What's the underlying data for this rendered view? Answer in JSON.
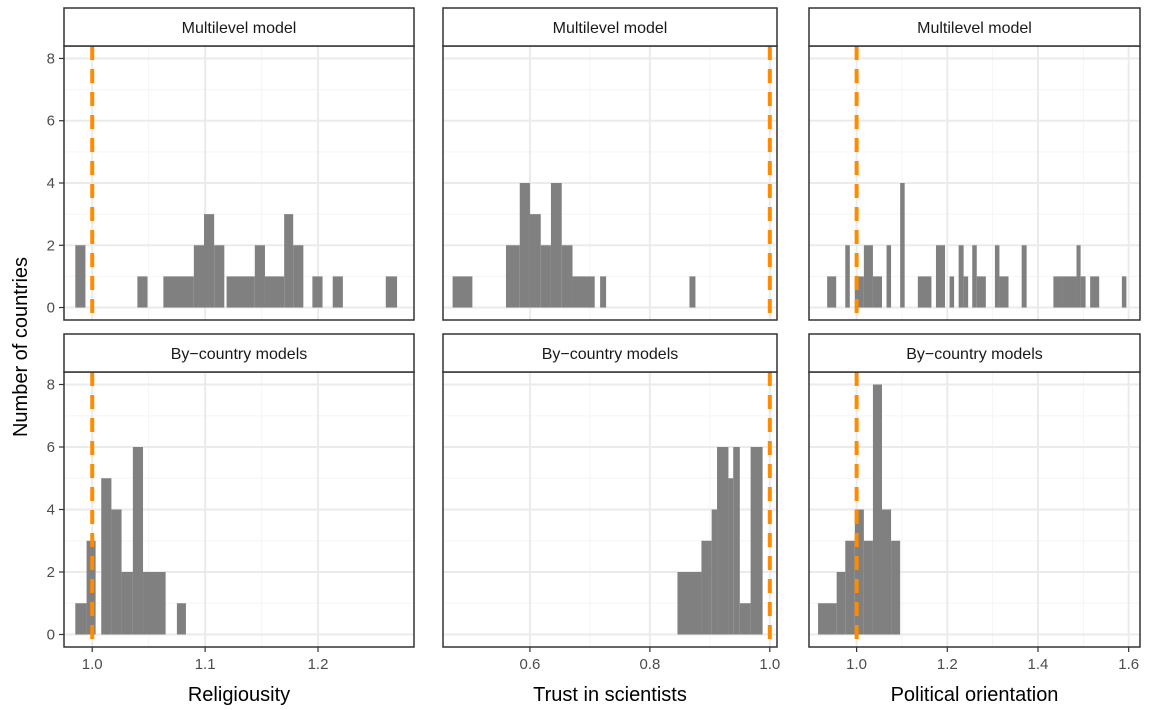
{
  "ylabel": "Number of countries",
  "colors": {
    "bar": "#808080",
    "reference_line": "#FF8C00",
    "grid_major": "#EBEBEB",
    "grid_minor": "#F5F5F5",
    "frame": "#333333",
    "strip_fill": "#FFFFFF"
  },
  "chart_data": [
    {
      "type": "bar",
      "panel": "religiousness-multilevel",
      "title": "Multilevel model",
      "xlabel": "Religiousity",
      "ylabel": "Number of countries",
      "xlim": [
        0.975,
        1.285
      ],
      "ylim": [
        -0.4,
        8.4
      ],
      "xticks": [
        1.0,
        1.1,
        1.2
      ],
      "xtick_labels": [
        "1.0",
        "1.1",
        "1.2"
      ],
      "yticks": [
        0,
        2,
        4,
        6,
        8
      ],
      "ytick_labels": [
        "0",
        "2",
        "4",
        "6",
        "8"
      ],
      "reference_line": 1.0,
      "bins": [
        [
          0.985,
          0.994,
          2
        ],
        [
          1.04,
          1.049,
          1
        ],
        [
          1.063,
          1.09,
          1
        ],
        [
          1.09,
          1.099,
          2
        ],
        [
          1.099,
          1.108,
          3
        ],
        [
          1.108,
          1.117,
          2
        ],
        [
          1.119,
          1.144,
          1
        ],
        [
          1.144,
          1.153,
          2
        ],
        [
          1.153,
          1.17,
          1
        ],
        [
          1.17,
          1.178,
          3
        ],
        [
          1.178,
          1.187,
          2
        ],
        [
          1.195,
          1.204,
          1
        ],
        [
          1.213,
          1.222,
          1
        ],
        [
          1.26,
          1.27,
          1
        ]
      ]
    },
    {
      "type": "bar",
      "panel": "trust-multilevel",
      "title": "Multilevel model",
      "xlabel": "Trust in scientists",
      "ylabel": "Number of countries",
      "xlim": [
        0.455,
        1.012
      ],
      "ylim": [
        -0.4,
        8.4
      ],
      "xticks": [
        0.6,
        0.8,
        1.0
      ],
      "xtick_labels": [
        "0.6",
        "0.8",
        "1.0"
      ],
      "yticks": [
        0,
        2,
        4,
        6,
        8
      ],
      "ytick_labels": [
        "0",
        "2",
        "4",
        "6",
        "8"
      ],
      "reference_line": 1.0,
      "bins": [
        [
          0.471,
          0.504,
          1
        ],
        [
          0.56,
          0.583,
          2
        ],
        [
          0.583,
          0.6,
          4
        ],
        [
          0.6,
          0.618,
          3
        ],
        [
          0.618,
          0.635,
          2
        ],
        [
          0.635,
          0.653,
          4
        ],
        [
          0.653,
          0.671,
          2
        ],
        [
          0.671,
          0.708,
          1
        ],
        [
          0.717,
          0.727,
          1
        ],
        [
          0.866,
          0.876,
          1
        ]
      ]
    },
    {
      "type": "bar",
      "panel": "political-multilevel",
      "title": "Multilevel model",
      "xlabel": "Political orientation",
      "ylabel": "Number of countries",
      "xlim": [
        0.895,
        1.625
      ],
      "ylim": [
        -0.4,
        8.4
      ],
      "xticks": [
        1.0,
        1.2,
        1.4,
        1.6
      ],
      "xtick_labels": [
        "1.0",
        "1.2",
        "1.4",
        "1.6"
      ],
      "yticks": [
        0,
        2,
        4,
        6,
        8
      ],
      "ytick_labels": [
        "0",
        "2",
        "4",
        "6",
        "8"
      ],
      "reference_line": 1.0,
      "bins": [
        [
          0.935,
          0.955,
          1
        ],
        [
          0.975,
          0.985,
          2
        ],
        [
          0.996,
          1.016,
          1
        ],
        [
          1.016,
          1.036,
          2
        ],
        [
          1.036,
          1.056,
          1
        ],
        [
          1.066,
          1.076,
          2
        ],
        [
          1.096,
          1.106,
          4
        ],
        [
          1.135,
          1.165,
          1
        ],
        [
          1.175,
          1.195,
          2
        ],
        [
          1.205,
          1.215,
          1
        ],
        [
          1.225,
          1.236,
          2
        ],
        [
          1.236,
          1.246,
          1
        ],
        [
          1.255,
          1.265,
          2
        ],
        [
          1.265,
          1.285,
          1
        ],
        [
          1.305,
          1.315,
          2
        ],
        [
          1.315,
          1.335,
          1
        ],
        [
          1.364,
          1.375,
          2
        ],
        [
          1.434,
          1.454,
          1
        ],
        [
          1.454,
          1.485,
          1
        ],
        [
          1.485,
          1.494,
          2
        ],
        [
          1.494,
          1.505,
          1
        ],
        [
          1.515,
          1.535,
          1
        ],
        [
          1.585,
          1.595,
          1
        ]
      ]
    },
    {
      "type": "bar",
      "panel": "religiousness-by-country",
      "title": "By−country models",
      "xlabel": "Religiousity",
      "ylabel": "Number of countries",
      "xlim": [
        0.975,
        1.285
      ],
      "ylim": [
        -0.4,
        8.4
      ],
      "xticks": [
        1.0,
        1.1,
        1.2
      ],
      "xtick_labels": [
        "1.0",
        "1.1",
        "1.2"
      ],
      "yticks": [
        0,
        2,
        4,
        6,
        8
      ],
      "ytick_labels": [
        "0",
        "2",
        "4",
        "6",
        "8"
      ],
      "reference_line": 1.0,
      "bins": [
        [
          0.985,
          0.995,
          1
        ],
        [
          0.995,
          1.003,
          3
        ],
        [
          1.003,
          1.008,
          0
        ],
        [
          1.008,
          1.017,
          5
        ],
        [
          1.017,
          1.026,
          4
        ],
        [
          1.026,
          1.036,
          2
        ],
        [
          1.036,
          1.045,
          6
        ],
        [
          1.045,
          1.065,
          2
        ],
        [
          1.075,
          1.083,
          1
        ]
      ]
    },
    {
      "type": "bar",
      "panel": "trust-by-country",
      "title": "By−country models",
      "xlabel": "Trust in scientists",
      "ylabel": "Number of countries",
      "xlim": [
        0.455,
        1.012
      ],
      "ylim": [
        -0.4,
        8.4
      ],
      "xticks": [
        0.6,
        0.8,
        1.0
      ],
      "xtick_labels": [
        "0.6",
        "0.8",
        "1.0"
      ],
      "yticks": [
        0,
        2,
        4,
        6,
        8
      ],
      "ytick_labels": [
        "0",
        "2",
        "4",
        "6",
        "8"
      ],
      "reference_line": 1.0,
      "bins": [
        [
          0.846,
          0.886,
          2
        ],
        [
          0.886,
          0.903,
          3
        ],
        [
          0.903,
          0.912,
          4
        ],
        [
          0.912,
          0.931,
          6
        ],
        [
          0.931,
          0.939,
          5
        ],
        [
          0.939,
          0.95,
          6
        ],
        [
          0.95,
          0.968,
          1
        ],
        [
          0.968,
          0.988,
          6
        ]
      ]
    },
    {
      "type": "bar",
      "panel": "political-by-country",
      "title": "By−country models",
      "xlabel": "Political orientation",
      "ylabel": "Number of countries",
      "xlim": [
        0.895,
        1.625
      ],
      "ylim": [
        -0.4,
        8.4
      ],
      "xticks": [
        1.0,
        1.2,
        1.4,
        1.6
      ],
      "xtick_labels": [
        "1.0",
        "1.2",
        "1.4",
        "1.6"
      ],
      "yticks": [
        0,
        2,
        4,
        6,
        8
      ],
      "ytick_labels": [
        "0",
        "2",
        "4",
        "6",
        "8"
      ],
      "reference_line": 1.0,
      "bins": [
        [
          0.915,
          0.956,
          1
        ],
        [
          0.956,
          0.975,
          2
        ],
        [
          0.975,
          0.996,
          3
        ],
        [
          0.996,
          1.016,
          4
        ],
        [
          1.016,
          1.036,
          3
        ],
        [
          1.036,
          1.056,
          8
        ],
        [
          1.056,
          1.076,
          4
        ],
        [
          1.076,
          1.096,
          3
        ]
      ]
    }
  ]
}
